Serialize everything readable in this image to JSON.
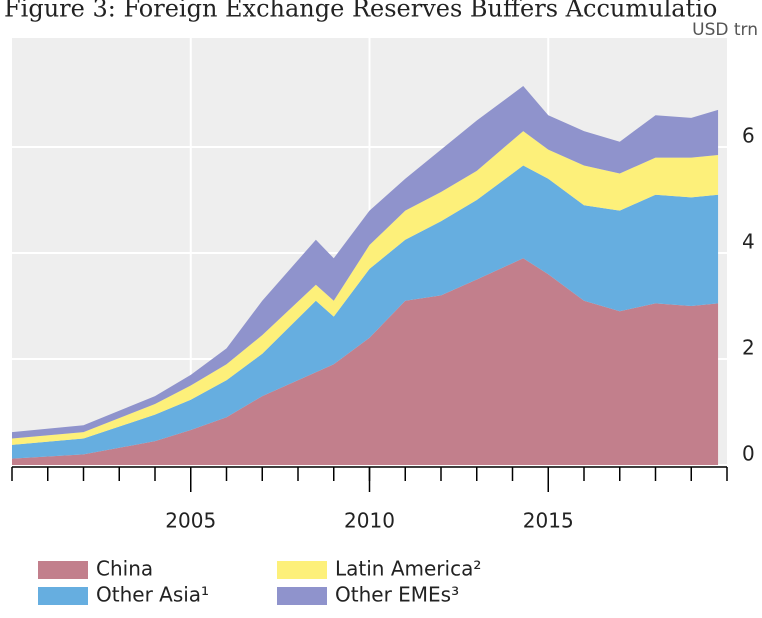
{
  "chart_data": {
    "type": "stacked_area",
    "title": "Figure 3: Foreign Exchange Reserves Buffers Accumulatio",
    "unit_label": "USD trn",
    "x": [
      2000,
      2002,
      2004,
      2005,
      2006,
      2007,
      2008.5,
      2009,
      2010,
      2011,
      2012,
      2013,
      2014.3,
      2015,
      2016,
      2017,
      2018,
      2019,
      2019.75
    ],
    "series": [
      {
        "name": "China",
        "color": "#c27f8c",
        "values": [
          0.12,
          0.2,
          0.45,
          0.66,
          0.9,
          1.3,
          1.75,
          1.9,
          2.4,
          3.1,
          3.2,
          3.5,
          3.9,
          3.6,
          3.1,
          2.9,
          3.05,
          3.0,
          3.05
        ]
      },
      {
        "name": "Other Asia¹",
        "color": "#66aee0",
        "values": [
          0.26,
          0.3,
          0.5,
          0.57,
          0.7,
          0.8,
          1.35,
          0.9,
          1.3,
          1.15,
          1.4,
          1.5,
          1.75,
          1.8,
          1.8,
          1.9,
          2.05,
          2.05,
          2.05
        ]
      },
      {
        "name": "Latin America²",
        "color": "#fdf07a",
        "values": [
          0.12,
          0.12,
          0.2,
          0.27,
          0.3,
          0.35,
          0.3,
          0.3,
          0.45,
          0.55,
          0.55,
          0.55,
          0.65,
          0.55,
          0.75,
          0.7,
          0.7,
          0.75,
          0.75
        ]
      },
      {
        "name": "Other EMEs³",
        "color": "#8f93cc",
        "values": [
          0.12,
          0.13,
          0.15,
          0.2,
          0.3,
          0.65,
          0.85,
          0.8,
          0.65,
          0.6,
          0.8,
          0.95,
          0.85,
          0.65,
          0.65,
          0.6,
          0.8,
          0.75,
          0.85
        ]
      }
    ],
    "xlim": [
      2000,
      2020
    ],
    "xticks": [
      2005,
      2010,
      2015
    ],
    "xminor_ticks": [
      2000,
      2001,
      2002,
      2003,
      2004,
      2005,
      2006,
      2007,
      2008,
      2009,
      2010,
      2011,
      2012,
      2013,
      2014,
      2015,
      2016,
      2017,
      2018,
      2019,
      2020
    ],
    "ylim": [
      0,
      8
    ],
    "yticks": [
      0,
      2,
      4,
      6
    ],
    "grid": true
  }
}
